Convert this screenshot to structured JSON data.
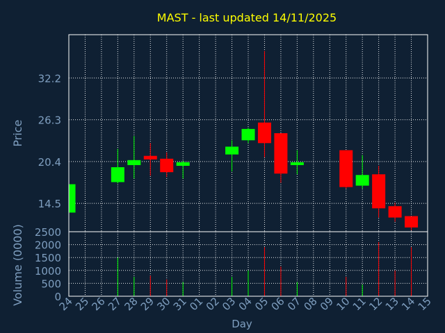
{
  "colors": {
    "background": "#0f2033",
    "axis": "#ffffff",
    "grid": "#ffffff",
    "tick_label": "#7f9fc0",
    "title": "#ffff00",
    "up": "#00ff00",
    "down": "#ff0000"
  },
  "chart_data": {
    "type": "candlestick",
    "title": "MAST - last updated 14/11/2025",
    "xlabel": "Day",
    "price_panel": {
      "ylabel": "Price",
      "ylim": [
        10.5,
        38.3
      ],
      "yticks": [
        "14.5",
        "20.4",
        "26.3",
        "32.2"
      ],
      "ytick_values": [
        14.5,
        20.4,
        26.3,
        32.2
      ],
      "grid": true
    },
    "volume_panel": {
      "ylabel": "Volume (0000)",
      "ylim": [
        0,
        2500
      ],
      "yticks": [
        "0",
        "500",
        "1000",
        "1500",
        "2000",
        "2500"
      ],
      "ytick_values": [
        0,
        500,
        1000,
        1500,
        2000,
        2500
      ],
      "grid": true
    },
    "x_tick_labels": [
      "24",
      "25",
      "26",
      "27",
      "28",
      "29",
      "30",
      "31",
      "01",
      "02",
      "03",
      "04",
      "05",
      "06",
      "07",
      "08",
      "09",
      "10",
      "11",
      "12",
      "13",
      "14",
      "15"
    ],
    "candles": [
      {
        "day": "24",
        "open": 13.2,
        "high": 17.3,
        "low": 13.0,
        "close": 17.2,
        "volume": 0
      },
      {
        "day": "27",
        "open": 17.5,
        "high": 22.2,
        "low": 17.3,
        "close": 19.6,
        "volume": 1500
      },
      {
        "day": "28",
        "open": 19.9,
        "high": 24.0,
        "low": 18.0,
        "close": 20.6,
        "volume": 750
      },
      {
        "day": "29",
        "open": 21.2,
        "high": 23.0,
        "low": 18.4,
        "close": 20.7,
        "volume": 800
      },
      {
        "day": "30",
        "open": 20.8,
        "high": 21.7,
        "low": 18.2,
        "close": 18.9,
        "volume": 650
      },
      {
        "day": "31",
        "open": 19.8,
        "high": 20.5,
        "low": 18.0,
        "close": 20.3,
        "volume": 550
      },
      {
        "day": "03",
        "open": 21.4,
        "high": 23.4,
        "low": 19.0,
        "close": 22.5,
        "volume": 750
      },
      {
        "day": "04",
        "open": 23.4,
        "high": 25.2,
        "low": 23.0,
        "close": 25.0,
        "volume": 1000
      },
      {
        "day": "05",
        "open": 25.9,
        "high": 36.0,
        "low": 21.0,
        "close": 23.0,
        "volume": 1900
      },
      {
        "day": "06",
        "open": 24.4,
        "high": 24.4,
        "low": 17.4,
        "close": 18.7,
        "volume": 1150
      },
      {
        "day": "07",
        "open": 19.9,
        "high": 22.0,
        "low": 18.6,
        "close": 20.3,
        "volume": 550
      },
      {
        "day": "10",
        "open": 22.0,
        "high": 22.0,
        "low": 16.6,
        "close": 16.8,
        "volume": 750
      },
      {
        "day": "11",
        "open": 17.0,
        "high": 21.3,
        "low": 16.6,
        "close": 18.5,
        "volume": 450
      },
      {
        "day": "12",
        "open": 18.6,
        "high": 19.8,
        "low": 12.5,
        "close": 13.8,
        "volume": 2100
      },
      {
        "day": "13",
        "open": 14.1,
        "high": 14.6,
        "low": 11.9,
        "close": 12.5,
        "volume": 1000
      },
      {
        "day": "14",
        "open": 12.7,
        "high": 12.7,
        "low": 10.7,
        "close": 11.1,
        "volume": 1900
      }
    ]
  }
}
